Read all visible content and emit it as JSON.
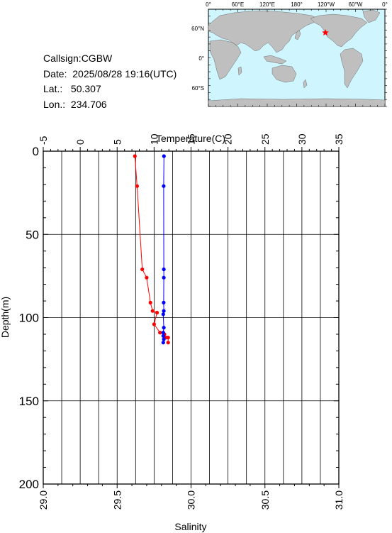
{
  "info": {
    "callsign": "Callsign:CGBW",
    "date": "Date:  2025/08/28 19:16(UTC)",
    "lat": "Lat.:   50.307",
    "lon": "Lon.:  234.706"
  },
  "map": {
    "lon_labels": [
      "0°",
      "60°E",
      "120°E",
      "180°",
      "120°W",
      "60°W",
      "0°"
    ],
    "lat_labels": [
      "60°N",
      "0°",
      "60°S"
    ],
    "station_marker": "red-star",
    "ocean_color": "#cff6ff",
    "land_color": "#bfbfbf"
  },
  "chart_data": {
    "type": "line",
    "top_axis": {
      "label": "Temperature(C)",
      "range": [
        -5,
        35
      ],
      "ticks": [
        "-5",
        "0",
        "5",
        "10",
        "15",
        "20",
        "25",
        "30",
        "35"
      ]
    },
    "bottom_axis": {
      "label": "Salinity",
      "range": [
        29.0,
        31.0
      ],
      "ticks": [
        "29.0",
        "29.5",
        "30.0",
        "30.5",
        "31.0"
      ]
    },
    "y_axis": {
      "label": "Depth(m)",
      "range": [
        0,
        200
      ],
      "inverted": true,
      "ticks": [
        "0",
        "50",
        "100",
        "150",
        "200"
      ]
    },
    "grid": true,
    "series": [
      {
        "color": "#ff0000",
        "axis": "top",
        "points": [
          [
            7.4,
            3
          ],
          [
            7.7,
            21
          ],
          [
            8.4,
            71
          ],
          [
            9.0,
            76
          ],
          [
            9.5,
            91
          ],
          [
            9.8,
            96
          ],
          [
            10.4,
            97
          ],
          [
            10.0,
            104
          ],
          [
            10.8,
            109
          ],
          [
            11.4,
            110
          ],
          [
            11.6,
            112
          ],
          [
            11.9,
            112
          ],
          [
            11.9,
            115
          ]
        ]
      },
      {
        "color": "#0000ff",
        "axis": "bottom",
        "points": [
          [
            29.817,
            3
          ],
          [
            29.815,
            21
          ],
          [
            29.816,
            71
          ],
          [
            29.816,
            76
          ],
          [
            29.815,
            91
          ],
          [
            29.816,
            96
          ],
          [
            29.812,
            98
          ],
          [
            29.816,
            106
          ],
          [
            29.812,
            109
          ],
          [
            29.812,
            111
          ],
          [
            29.816,
            113
          ],
          [
            29.812,
            115
          ]
        ]
      }
    ]
  }
}
